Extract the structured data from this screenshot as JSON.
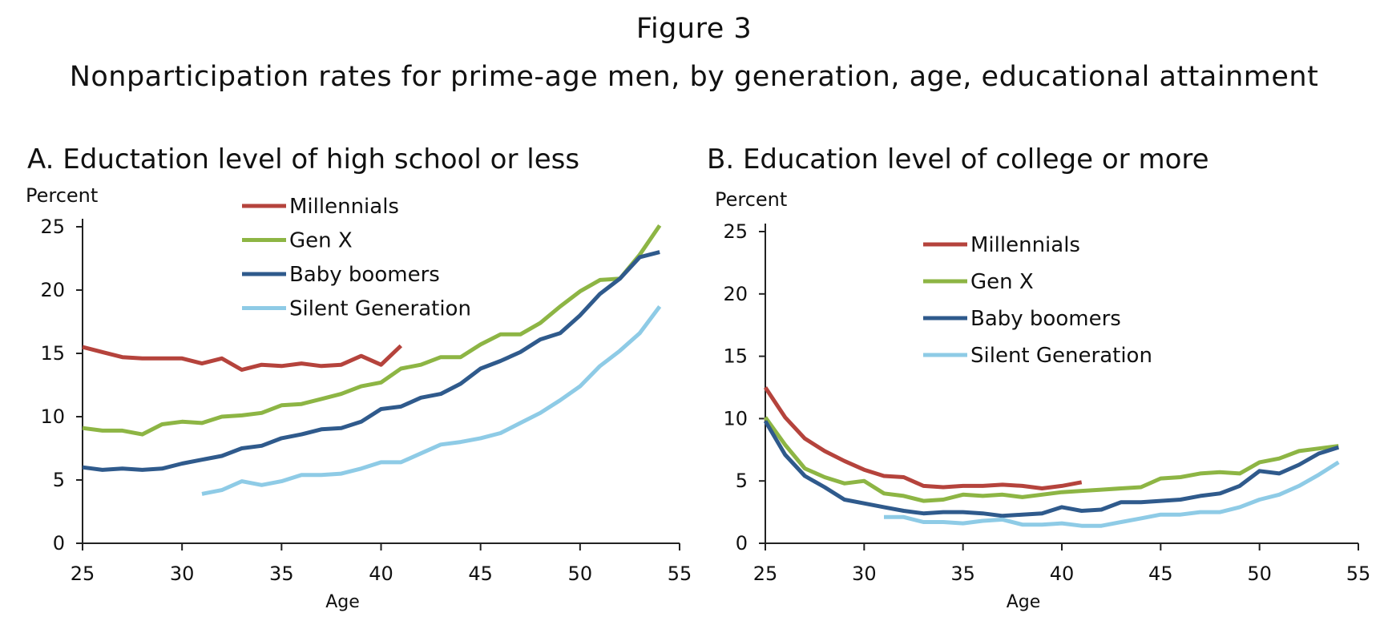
{
  "figure": {
    "number": "Figure 3",
    "title": "Nonparticipation rates for prime-age men, by generation, age, educational attainment"
  },
  "colors": {
    "Millennials": "#b5433c",
    "Gen X": "#8db544",
    "Baby boomers": "#2f5a8c",
    "Silent Generation": "#8ecbe6"
  },
  "chart_data": [
    {
      "type": "line",
      "title": "A. Eductation level of high school or less",
      "ylabel": "Percent",
      "xlabel": "Age",
      "xlim": [
        25,
        55
      ],
      "ylim": [
        0,
        25
      ],
      "xticks": [
        25,
        30,
        35,
        40,
        45,
        50,
        55
      ],
      "yticks": [
        0,
        5,
        10,
        15,
        20,
        25
      ],
      "grid": false,
      "legend": "top-left",
      "series": [
        {
          "name": "Millennials",
          "x": [
            25,
            26,
            27,
            28,
            29,
            30,
            31,
            32,
            33,
            34,
            35,
            36,
            37,
            38,
            39,
            40,
            41
          ],
          "y": [
            15.5,
            15.1,
            14.7,
            14.6,
            14.6,
            14.6,
            14.2,
            14.6,
            13.7,
            14.1,
            14.0,
            14.2,
            14.0,
            14.1,
            14.8,
            14.1,
            15.6
          ]
        },
        {
          "name": "Gen X",
          "x": [
            25,
            26,
            27,
            28,
            29,
            30,
            31,
            32,
            33,
            34,
            35,
            36,
            37,
            38,
            39,
            40,
            41,
            42,
            43,
            44,
            45,
            46,
            47,
            48,
            49,
            50,
            51,
            52,
            53,
            54
          ],
          "y": [
            9.1,
            8.9,
            8.9,
            8.6,
            9.4,
            9.6,
            9.5,
            10.0,
            10.1,
            10.3,
            10.9,
            11.0,
            11.4,
            11.8,
            12.4,
            12.7,
            13.8,
            14.1,
            14.7,
            14.7,
            15.7,
            16.5,
            16.5,
            17.4,
            18.7,
            19.9,
            20.8,
            20.9,
            22.8,
            25.1
          ]
        },
        {
          "name": "Baby boomers",
          "x": [
            25,
            26,
            27,
            28,
            29,
            30,
            31,
            32,
            33,
            34,
            35,
            36,
            37,
            38,
            39,
            40,
            41,
            42,
            43,
            44,
            45,
            46,
            47,
            48,
            49,
            50,
            51,
            52,
            53,
            54
          ],
          "y": [
            6.0,
            5.8,
            5.9,
            5.8,
            5.9,
            6.3,
            6.6,
            6.9,
            7.5,
            7.7,
            8.3,
            8.6,
            9.0,
            9.1,
            9.6,
            10.6,
            10.8,
            11.5,
            11.8,
            12.6,
            13.8,
            14.4,
            15.1,
            16.1,
            16.6,
            18.0,
            19.7,
            20.9,
            22.6,
            23.0
          ]
        },
        {
          "name": "Silent Generation",
          "x": [
            31,
            32,
            33,
            34,
            35,
            36,
            37,
            38,
            39,
            40,
            41,
            42,
            43,
            44,
            45,
            46,
            47,
            48,
            49,
            50,
            51,
            52,
            53,
            54
          ],
          "y": [
            3.9,
            4.2,
            4.9,
            4.6,
            4.9,
            5.4,
            5.4,
            5.5,
            5.9,
            6.4,
            6.4,
            7.1,
            7.8,
            8.0,
            8.3,
            8.7,
            9.5,
            10.3,
            11.3,
            12.4,
            14.0,
            15.2,
            16.6,
            18.7
          ]
        }
      ]
    },
    {
      "type": "line",
      "title": "B. Education level of college or more",
      "ylabel": "Percent",
      "xlabel": "Age",
      "xlim": [
        25,
        55
      ],
      "ylim": [
        0,
        25
      ],
      "xticks": [
        25,
        30,
        35,
        40,
        45,
        50,
        55
      ],
      "yticks": [
        0,
        5,
        10,
        15,
        20,
        25
      ],
      "grid": false,
      "legend": "top-center",
      "series": [
        {
          "name": "Millennials",
          "x": [
            25,
            26,
            27,
            28,
            29,
            30,
            31,
            32,
            33,
            34,
            35,
            36,
            37,
            38,
            39,
            40,
            41
          ],
          "y": [
            12.5,
            10.1,
            8.4,
            7.4,
            6.6,
            5.9,
            5.4,
            5.3,
            4.6,
            4.5,
            4.6,
            4.6,
            4.7,
            4.6,
            4.4,
            4.6,
            4.9
          ]
        },
        {
          "name": "Gen X",
          "x": [
            25,
            26,
            27,
            28,
            29,
            30,
            31,
            32,
            33,
            34,
            35,
            36,
            37,
            38,
            39,
            40,
            41,
            42,
            43,
            44,
            45,
            46,
            47,
            48,
            49,
            50,
            51,
            52,
            53,
            54
          ],
          "y": [
            10.1,
            7.9,
            6.0,
            5.3,
            4.8,
            5.0,
            4.0,
            3.8,
            3.4,
            3.5,
            3.9,
            3.8,
            3.9,
            3.7,
            3.9,
            4.1,
            4.2,
            4.3,
            4.4,
            4.5,
            5.2,
            5.3,
            5.6,
            5.7,
            5.6,
            6.5,
            6.8,
            7.4,
            7.6,
            7.8
          ]
        },
        {
          "name": "Baby boomers",
          "x": [
            25,
            26,
            27,
            28,
            29,
            30,
            31,
            32,
            33,
            34,
            35,
            36,
            37,
            38,
            39,
            40,
            41,
            42,
            43,
            44,
            45,
            46,
            47,
            48,
            49,
            50,
            51,
            52,
            53,
            54
          ],
          "y": [
            9.8,
            7.1,
            5.4,
            4.5,
            3.5,
            3.2,
            2.9,
            2.6,
            2.4,
            2.5,
            2.5,
            2.4,
            2.2,
            2.3,
            2.4,
            2.9,
            2.6,
            2.7,
            3.3,
            3.3,
            3.4,
            3.5,
            3.8,
            4.0,
            4.6,
            5.8,
            5.6,
            6.3,
            7.2,
            7.7
          ]
        },
        {
          "name": "Silent Generation",
          "x": [
            31,
            32,
            33,
            34,
            35,
            36,
            37,
            38,
            39,
            40,
            41,
            42,
            43,
            44,
            45,
            46,
            47,
            48,
            49,
            50,
            51,
            52,
            53,
            54
          ],
          "y": [
            2.1,
            2.1,
            1.7,
            1.7,
            1.6,
            1.8,
            1.9,
            1.5,
            1.5,
            1.6,
            1.4,
            1.4,
            1.7,
            2.0,
            2.3,
            2.3,
            2.5,
            2.5,
            2.9,
            3.5,
            3.9,
            4.6,
            5.5,
            6.5
          ]
        }
      ]
    }
  ]
}
